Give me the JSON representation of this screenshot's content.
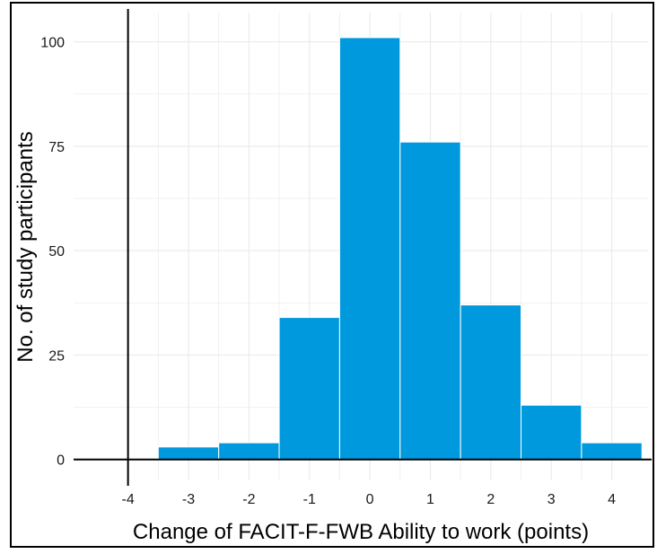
{
  "chart_data": {
    "type": "bar",
    "title": "",
    "xlabel": "Change of FACIT-F-FWB Ability to work (points)",
    "ylabel": "No. of study participants",
    "categories": [
      "-3",
      "-2",
      "-1",
      "0",
      "1",
      "2",
      "3",
      "4"
    ],
    "x": [
      -3,
      -2,
      -1,
      0,
      1,
      2,
      3,
      4
    ],
    "values": [
      3,
      4,
      34,
      101,
      76,
      37,
      13,
      4
    ],
    "xlim": [
      -4.9,
      4.6
    ],
    "ylim": [
      -5,
      107
    ],
    "x_ticks": [
      -4,
      -3,
      -2,
      -1,
      0,
      1,
      2,
      3,
      4
    ],
    "x_tick_labels": [
      "-4",
      "-3",
      "-2",
      "-1",
      "0",
      "1",
      "2",
      "3",
      "4"
    ],
    "y_ticks": [
      0,
      25,
      50,
      75,
      100
    ],
    "y_tick_labels": [
      "0",
      "25",
      "50",
      "75",
      "100"
    ],
    "reference_lines": {
      "vertical_x": -4,
      "horizontal_y": 0
    },
    "grid": true,
    "legend": "none",
    "colors": {
      "bar": "#0099dd",
      "bar_edge": "#ffffff",
      "grid": "#ebebeb",
      "reference_line": "#000000"
    }
  }
}
